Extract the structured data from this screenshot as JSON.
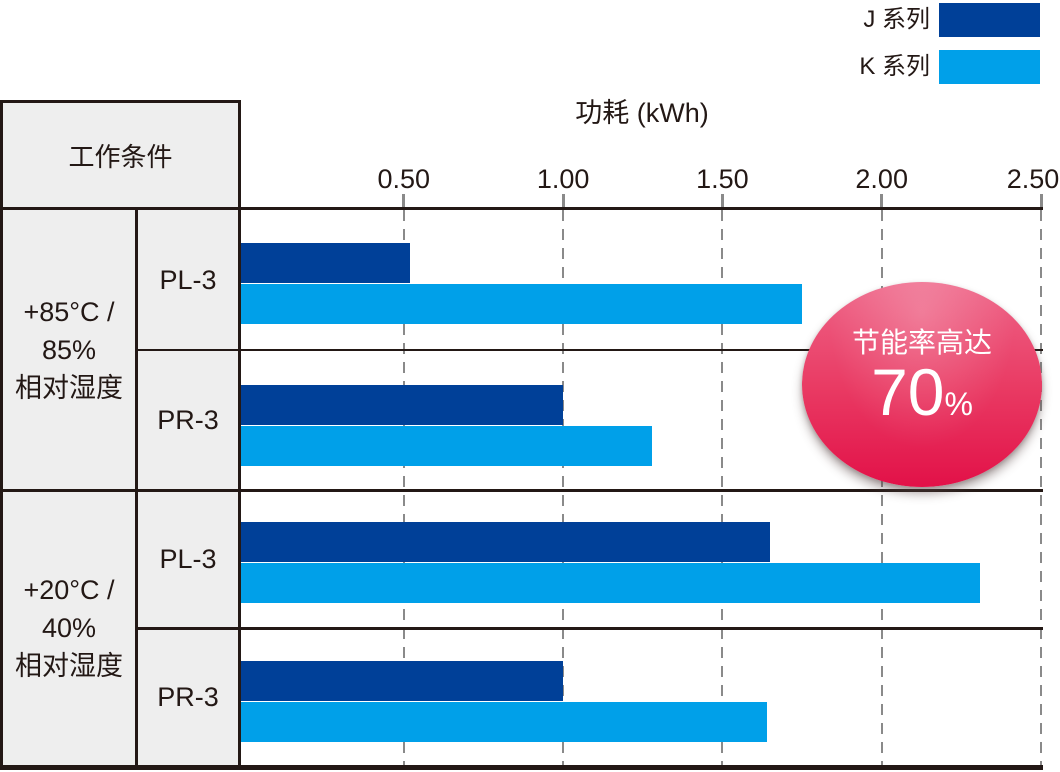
{
  "legend": {
    "items": [
      {
        "label": "J 系列",
        "color": "#004098"
      },
      {
        "label": "K 系列",
        "color": "#00a0e9"
      }
    ]
  },
  "table": {
    "header": "工作条件",
    "condition_1": "+85°C /\n85%\n相对湿度",
    "condition_2": "+20°C /\n40%\n相对湿度"
  },
  "axis": {
    "title": "功耗 (kWh)",
    "tick_labels": [
      "0.50",
      "1.00",
      "1.50",
      "2.00",
      "2.50"
    ],
    "tick_values": [
      0.5,
      1.0,
      1.5,
      2.0,
      2.5
    ]
  },
  "chart_data": {
    "type": "bar",
    "orientation": "horizontal",
    "title": "功耗 (kWh)",
    "xlabel": "功耗 (kWh)",
    "xlim": [
      0,
      2.5
    ],
    "x_ticks": [
      0.5,
      1.0,
      1.5,
      2.0,
      2.5
    ],
    "grid": "dashed-vertical",
    "legend_position": "top-right",
    "categories": [
      "+85°C/85%相对湿度 PL-3",
      "+85°C/85%相对湿度 PR-3",
      "+20°C/40%相对湿度 PL-3",
      "+20°C/40%相对湿度 PR-3"
    ],
    "series": [
      {
        "name": "J 系列",
        "color": "#004098",
        "values": [
          0.52,
          1.0,
          1.65,
          1.0
        ]
      },
      {
        "name": "K 系列",
        "color": "#00a0e9",
        "values": [
          1.75,
          1.28,
          2.31,
          1.64
        ]
      }
    ],
    "groups": [
      {
        "condition": "+85°C / 85% 相对湿度",
        "rows": [
          {
            "model": "PL-3",
            "J": 0.52,
            "K": 1.75
          },
          {
            "model": "PR-3",
            "J": 1.0,
            "K": 1.28
          }
        ]
      },
      {
        "condition": "+20°C / 40% 相对湿度",
        "rows": [
          {
            "model": "PL-3",
            "J": 1.65,
            "K": 2.31
          },
          {
            "model": "PR-3",
            "J": 1.0,
            "K": 1.64
          }
        ]
      }
    ],
    "annotation": "节能率高达 70%"
  },
  "badge": {
    "line1": "节能率高达",
    "value": "70",
    "unit": "%"
  },
  "colors": {
    "bar_j": "#004098",
    "bar_k": "#00a0e9",
    "table_bg": "#eeeeee",
    "border": "#231815",
    "grid": "#8a8a8a",
    "badge_top": "#ee6487",
    "badge_bottom": "#e21148",
    "badge_text": "#ffffff"
  }
}
